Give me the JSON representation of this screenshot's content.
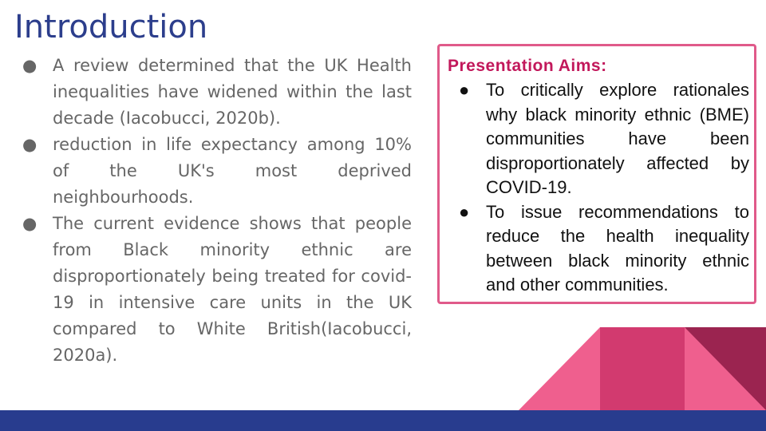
{
  "slide": {
    "title": "Introduction",
    "bullets": [
      "A review determined that the UK Health inequalities have widened within the last decade (Iacobucci, 2020b).",
      "reduction in life expectancy among 10% of the UK's most deprived neighbourhoods.",
      "The current evidence shows that people from Black minority ethnic are disproportionately being treated for covid-19 in intensive care units in the UK compared to White British(Iacobucci, 2020a)."
    ],
    "bullet_glyph": "●",
    "aims": {
      "title": "Presentation Aims:",
      "items": [
        "To critically explore rationales why black minority ethnic (BME) communities have been disproportionately affected by COVID-19.",
        "To issue recommendations to reduce the health inequality between black minority ethnic and other communities."
      ]
    }
  },
  "colors": {
    "title": "#2c3e8c",
    "body_text": "#666666",
    "aims_border": "#e05a8a",
    "aims_title": "#c2185b",
    "footer_bar": "#283c8e",
    "deco_light_pink": "#ef5f8e",
    "deco_mid_pink": "#d23a6f",
    "deco_dark": "#9b2450"
  }
}
